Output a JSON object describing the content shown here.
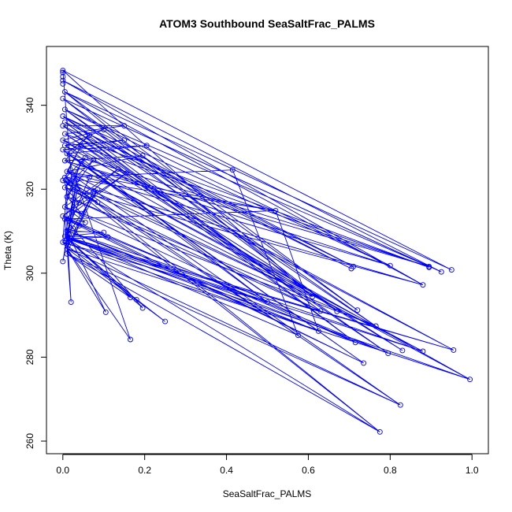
{
  "chart_data": {
    "type": "line",
    "title": "ATOM3 Southbound SeaSaltFrac_PALMS",
    "xlabel": "SeaSaltFrac_PALMS",
    "ylabel": "Theta (K)",
    "xlim": [
      -0.04,
      1.04
    ],
    "ylim": [
      257,
      354
    ],
    "xticks": [
      0.0,
      0.2,
      0.4,
      0.6,
      0.8,
      1.0
    ],
    "xtick_labels": [
      "0.0",
      "0.2",
      "0.4",
      "0.6",
      "0.8",
      "1.0"
    ],
    "yticks": [
      260,
      280,
      300,
      320,
      340
    ],
    "ytick_labels": [
      "260",
      "280",
      "300",
      "320",
      "340"
    ],
    "series_color": "#0000ff",
    "marker": "open-circle",
    "grid": false,
    "legend": "none",
    "points": [
      [
        0.0,
        348.3
      ],
      [
        0.0,
        347.8
      ],
      [
        0.0,
        346.8
      ],
      [
        0.0,
        345.9
      ],
      [
        0.0,
        345.1
      ],
      [
        0.005,
        343.2
      ],
      [
        0.0,
        341.6
      ],
      [
        0.005,
        339.0
      ],
      [
        0.0,
        337.4
      ],
      [
        0.005,
        336.0
      ],
      [
        0.0,
        335.1
      ],
      [
        0.005,
        333.2
      ],
      [
        0.0,
        331.7
      ],
      [
        0.005,
        330.4
      ],
      [
        0.0,
        329.4
      ],
      [
        0.01,
        328.5
      ],
      [
        0.005,
        326.8
      ],
      [
        0.01,
        324.2
      ],
      [
        0.005,
        322.8
      ],
      [
        0.0,
        322.1
      ],
      [
        0.005,
        320.4
      ],
      [
        0.01,
        318.2
      ],
      [
        0.005,
        315.8
      ],
      [
        0.0,
        313.6
      ],
      [
        0.005,
        312.9
      ],
      [
        0.01,
        310.1
      ],
      [
        0.005,
        308.8
      ],
      [
        0.01,
        308.2
      ],
      [
        0.0,
        307.4
      ],
      [
        0.01,
        305.9
      ],
      [
        0.01,
        304.6
      ],
      [
        0.0,
        302.8
      ],
      [
        0.15,
        335.1
      ],
      [
        0.1,
        334.2
      ],
      [
        0.15,
        331.7
      ],
      [
        0.065,
        332.9
      ],
      [
        0.205,
        330.4
      ],
      [
        0.045,
        330.4
      ],
      [
        0.195,
        328.0
      ],
      [
        0.055,
        327.5
      ],
      [
        0.075,
        327.0
      ],
      [
        0.045,
        326.6
      ],
      [
        0.135,
        324.8
      ],
      [
        0.155,
        323.8
      ],
      [
        0.415,
        324.6
      ],
      [
        0.065,
        322.8
      ],
      [
        0.035,
        322.3
      ],
      [
        0.01,
        321.5
      ],
      [
        0.085,
        319.9
      ],
      [
        0.075,
        319.6
      ],
      [
        0.035,
        320.1
      ],
      [
        0.025,
        317.5
      ],
      [
        0.085,
        316.9
      ],
      [
        0.04,
        316.8
      ],
      [
        0.52,
        314.9
      ],
      [
        0.045,
        314.2
      ],
      [
        0.055,
        312.1
      ],
      [
        0.04,
        311.3
      ],
      [
        0.025,
        310.7
      ],
      [
        0.1,
        309.7
      ],
      [
        0.11,
        308.6
      ],
      [
        0.015,
        309.2
      ],
      [
        0.71,
        301.6
      ],
      [
        0.705,
        301.1
      ],
      [
        0.8,
        301.8
      ],
      [
        0.895,
        301.6
      ],
      [
        0.895,
        301.4
      ],
      [
        0.925,
        300.3
      ],
      [
        0.95,
        300.8
      ],
      [
        0.88,
        297.2
      ],
      [
        0.61,
        294.4
      ],
      [
        0.5,
        293.1
      ],
      [
        0.63,
        291.0
      ],
      [
        0.67,
        290.9
      ],
      [
        0.72,
        291.2
      ],
      [
        0.765,
        287.4
      ],
      [
        0.625,
        286.2
      ],
      [
        0.575,
        285.2
      ],
      [
        0.715,
        283.5
      ],
      [
        0.735,
        278.6
      ],
      [
        0.83,
        281.6
      ],
      [
        0.795,
        280.9
      ],
      [
        0.88,
        281.4
      ],
      [
        0.955,
        281.7
      ],
      [
        0.995,
        274.7
      ],
      [
        0.825,
        268.6
      ],
      [
        0.775,
        262.2
      ],
      [
        0.165,
        294.2
      ],
      [
        0.18,
        293.7
      ],
      [
        0.195,
        291.7
      ],
      [
        0.02,
        293.1
      ],
      [
        0.105,
        290.7
      ],
      [
        0.25,
        288.5
      ],
      [
        0.165,
        284.2
      ]
    ],
    "path": [
      [
        0.0,
        348.3
      ],
      [
        0.95,
        300.8
      ],
      [
        0.005,
        343.2
      ],
      [
        0.88,
        297.2
      ],
      [
        0.0,
        345.9
      ],
      [
        0.925,
        300.3
      ],
      [
        0.0,
        341.6
      ],
      [
        0.895,
        301.6
      ],
      [
        0.005,
        339.0
      ],
      [
        0.8,
        301.8
      ],
      [
        0.0,
        337.4
      ],
      [
        0.71,
        301.6
      ],
      [
        0.005,
        336.0
      ],
      [
        0.705,
        301.1
      ],
      [
        0.0,
        335.1
      ],
      [
        0.15,
        335.1
      ],
      [
        0.005,
        333.2
      ],
      [
        0.895,
        301.4
      ],
      [
        0.0,
        331.7
      ],
      [
        0.1,
        334.2
      ],
      [
        0.005,
        330.4
      ],
      [
        0.15,
        331.7
      ],
      [
        0.0,
        329.4
      ],
      [
        0.205,
        330.4
      ],
      [
        0.01,
        328.5
      ],
      [
        0.065,
        332.9
      ],
      [
        0.005,
        326.8
      ],
      [
        0.195,
        328.0
      ],
      [
        0.01,
        324.2
      ],
      [
        0.045,
        330.4
      ],
      [
        0.005,
        322.8
      ],
      [
        0.415,
        324.6
      ],
      [
        0.575,
        285.2
      ],
      [
        0.0,
        322.1
      ],
      [
        0.055,
        327.5
      ],
      [
        0.005,
        320.4
      ],
      [
        0.075,
        327.0
      ],
      [
        0.01,
        318.2
      ],
      [
        0.045,
        326.6
      ],
      [
        0.005,
        315.8
      ],
      [
        0.135,
        324.8
      ],
      [
        0.0,
        313.6
      ],
      [
        0.155,
        323.8
      ],
      [
        0.005,
        312.9
      ],
      [
        0.52,
        314.9
      ],
      [
        0.625,
        286.2
      ],
      [
        0.01,
        310.1
      ],
      [
        0.065,
        322.8
      ],
      [
        0.005,
        308.8
      ],
      [
        0.035,
        322.3
      ],
      [
        0.01,
        308.2
      ],
      [
        0.01,
        321.5
      ],
      [
        0.0,
        307.4
      ],
      [
        0.085,
        319.9
      ],
      [
        0.01,
        305.9
      ],
      [
        0.075,
        319.6
      ],
      [
        0.01,
        304.6
      ],
      [
        0.035,
        320.1
      ],
      [
        0.0,
        302.8
      ],
      [
        0.025,
        317.5
      ],
      [
        0.0,
        348.3
      ],
      [
        0.61,
        294.4
      ],
      [
        0.005,
        343.2
      ],
      [
        0.72,
        291.2
      ],
      [
        0.0,
        341.6
      ],
      [
        0.67,
        290.9
      ],
      [
        0.005,
        339.0
      ],
      [
        0.765,
        287.4
      ],
      [
        0.0,
        337.4
      ],
      [
        0.63,
        291.0
      ],
      [
        0.005,
        336.0
      ],
      [
        0.715,
        283.5
      ],
      [
        0.0,
        335.1
      ],
      [
        0.795,
        280.9
      ],
      [
        0.005,
        333.2
      ],
      [
        0.83,
        281.6
      ],
      [
        0.0,
        331.7
      ],
      [
        0.955,
        281.7
      ],
      [
        0.005,
        330.4
      ],
      [
        0.5,
        293.1
      ],
      [
        0.0,
        329.4
      ],
      [
        0.735,
        278.6
      ],
      [
        0.01,
        328.5
      ],
      [
        0.995,
        274.7
      ],
      [
        0.005,
        326.8
      ],
      [
        0.88,
        281.4
      ],
      [
        0.01,
        324.2
      ],
      [
        0.825,
        268.6
      ],
      [
        0.005,
        322.8
      ],
      [
        0.775,
        262.2
      ],
      [
        0.0,
        322.1
      ],
      [
        0.085,
        316.9
      ],
      [
        0.005,
        320.4
      ],
      [
        0.04,
        316.8
      ],
      [
        0.01,
        318.2
      ],
      [
        0.045,
        314.2
      ],
      [
        0.005,
        315.8
      ],
      [
        0.055,
        312.1
      ],
      [
        0.0,
        313.6
      ],
      [
        0.04,
        311.3
      ],
      [
        0.005,
        312.9
      ],
      [
        0.025,
        310.7
      ],
      [
        0.01,
        310.1
      ],
      [
        0.1,
        309.7
      ],
      [
        0.005,
        308.8
      ],
      [
        0.11,
        308.6
      ],
      [
        0.01,
        308.2
      ],
      [
        0.015,
        309.2
      ],
      [
        0.01,
        304.6
      ],
      [
        0.165,
        294.2
      ],
      [
        0.005,
        308.8
      ],
      [
        0.18,
        293.7
      ],
      [
        0.01,
        308.2
      ],
      [
        0.195,
        291.7
      ],
      [
        0.005,
        312.9
      ],
      [
        0.02,
        293.1
      ],
      [
        0.01,
        310.1
      ],
      [
        0.105,
        290.7
      ],
      [
        0.0,
        307.4
      ],
      [
        0.25,
        288.5
      ],
      [
        0.01,
        305.9
      ],
      [
        0.165,
        284.2
      ],
      [
        0.01,
        328.5
      ],
      [
        0.895,
        301.6
      ],
      [
        0.005,
        326.8
      ],
      [
        0.8,
        301.8
      ],
      [
        0.01,
        324.2
      ],
      [
        0.52,
        314.9
      ],
      [
        0.005,
        322.8
      ],
      [
        0.61,
        294.4
      ],
      [
        0.0,
        322.1
      ],
      [
        0.88,
        297.2
      ],
      [
        0.005,
        320.4
      ],
      [
        0.63,
        291.0
      ],
      [
        0.01,
        318.2
      ],
      [
        0.765,
        287.4
      ],
      [
        0.005,
        315.8
      ],
      [
        0.715,
        283.5
      ],
      [
        0.0,
        313.6
      ],
      [
        0.735,
        278.6
      ],
      [
        0.005,
        312.9
      ],
      [
        0.795,
        280.9
      ],
      [
        0.01,
        310.1
      ],
      [
        0.88,
        281.4
      ],
      [
        0.005,
        308.8
      ],
      [
        0.955,
        281.7
      ],
      [
        0.01,
        308.2
      ],
      [
        0.995,
        274.7
      ],
      [
        0.01,
        305.9
      ],
      [
        0.825,
        268.6
      ],
      [
        0.01,
        304.6
      ],
      [
        0.775,
        262.2
      ],
      [
        0.01,
        308.2
      ],
      [
        0.5,
        293.1
      ],
      [
        0.0,
        307.4
      ],
      [
        0.625,
        286.2
      ],
      [
        0.005,
        308.8
      ],
      [
        0.575,
        285.2
      ]
    ]
  }
}
